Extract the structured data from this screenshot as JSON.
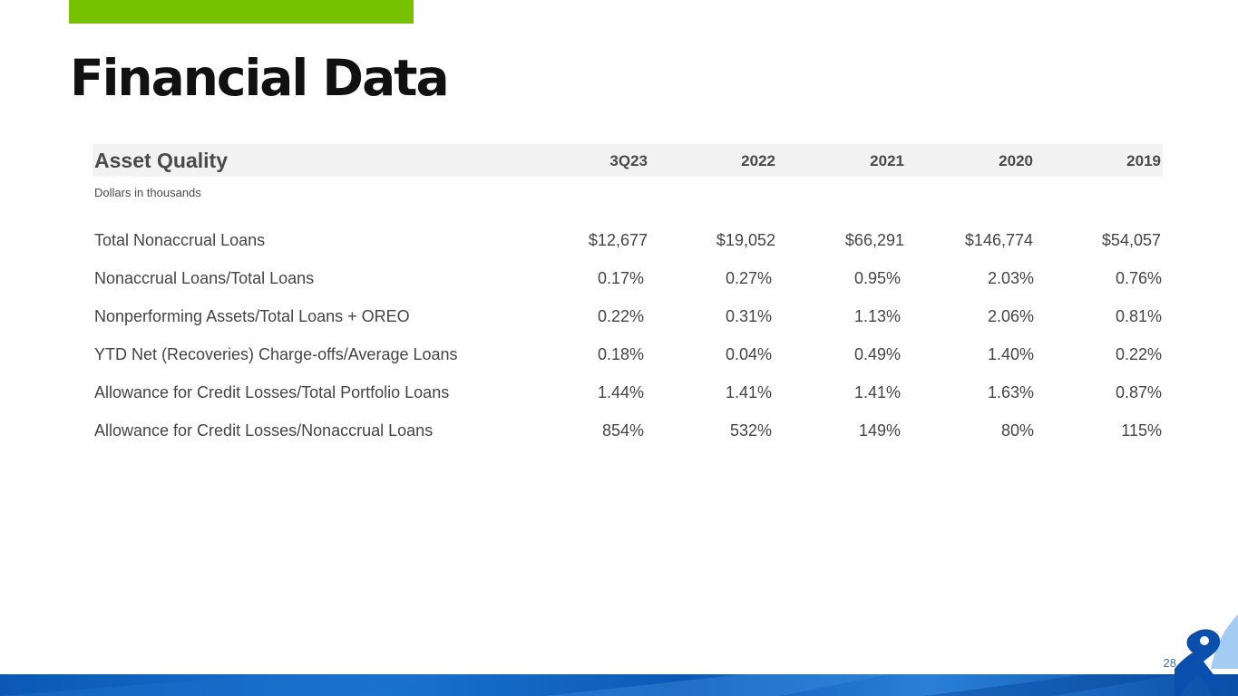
{
  "title": "Financial Data",
  "table": {
    "heading": "Asset Quality",
    "columns": [
      "3Q23",
      "2022",
      "2021",
      "2020",
      "2019"
    ],
    "units_note": "Dollars in thousands",
    "rows": [
      {
        "label": "Total Nonaccrual Loans",
        "values": [
          "$12,677",
          "$19,052",
          "$66,291",
          "$146,774",
          "$54,057"
        ]
      },
      {
        "label": "Nonaccrual Loans/Total Loans",
        "values": [
          "0.17%",
          "0.27%",
          "0.95%",
          "2.03%",
          "0.76%"
        ]
      },
      {
        "label": "Nonperforming Assets/Total Loans + OREO",
        "values": [
          "0.22%",
          "0.31%",
          "1.13%",
          "2.06%",
          "0.81%"
        ]
      },
      {
        "label": "YTD Net (Recoveries) Charge-offs/Average Loans",
        "values": [
          "0.18%",
          "0.04%",
          "0.49%",
          "1.40%",
          "0.22%"
        ]
      },
      {
        "label": "Allowance for Credit Losses/Total Portfolio Loans",
        "values": [
          "1.44%",
          "1.41%",
          "1.41%",
          "1.63%",
          "0.87%"
        ]
      },
      {
        "label": "Allowance for Credit Losses/Nonaccrual Loans",
        "values": [
          "854%",
          "532%",
          "149%",
          "80%",
          "115%"
        ]
      }
    ]
  },
  "page_number": "28",
  "colors": {
    "accent": "#76c200",
    "brand_blue": "#0b58b5"
  },
  "icons": {
    "logo": "ampersand-logo-icon"
  }
}
